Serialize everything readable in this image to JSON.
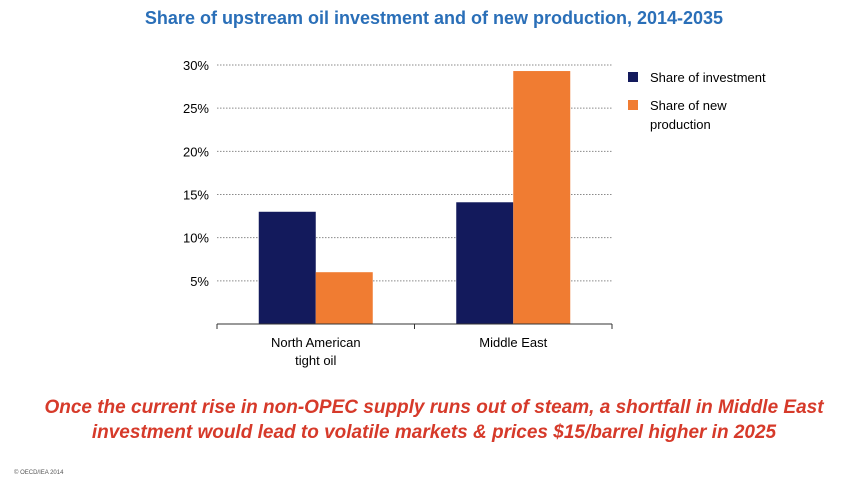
{
  "header": {
    "title": "Share of upstream oil investment and of new production, 2014-2035"
  },
  "chart_data": {
    "type": "bar",
    "categories": [
      [
        "North American",
        "tight oil"
      ],
      [
        "Middle East"
      ]
    ],
    "series": [
      {
        "name": "Share of investment",
        "color": "#131a5c",
        "values": [
          13,
          14.1
        ]
      },
      {
        "name": "Share of new production",
        "color": "#f07c32",
        "values": [
          6,
          29.3
        ]
      }
    ],
    "yticks": [
      "5%",
      "10%",
      "15%",
      "20%",
      "25%",
      "30%"
    ],
    "ylim": [
      0,
      30
    ],
    "grid": true,
    "legend": "right",
    "legend_lines": [
      [
        "Share of investment"
      ],
      [
        "Share of new",
        "production"
      ]
    ]
  },
  "caption": {
    "line1": "Once the current rise in non-OPEC supply runs out of steam, a shortfall in Middle East",
    "line2": "investment would lead to volatile markets & prices $15/barrel higher in 2025"
  },
  "footer": {
    "copyright": "© OECD/IEA 2014"
  }
}
